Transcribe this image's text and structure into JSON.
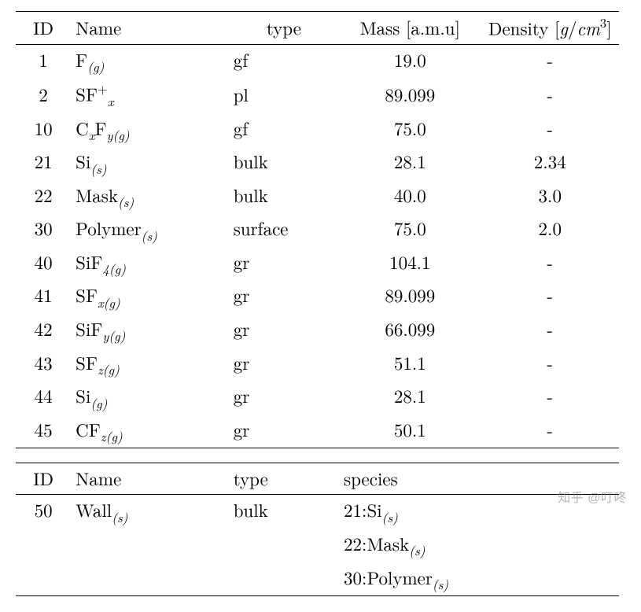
{
  "background_color": "#ffffff",
  "border_color": "#000000",
  "font_size_pt": 17,
  "table1": {
    "columns": [
      {
        "label": "ID",
        "align": "center"
      },
      {
        "label": "Name",
        "align": "left"
      },
      {
        "label": "type",
        "align": "left"
      },
      {
        "label_html": "Mass [a.m.u]",
        "align": "center"
      },
      {
        "label_html": "Density [<span class='it'>g</span>/<span class='it'>cm</span><span class='sup'>3</span>]",
        "align": "center"
      }
    ],
    "rows": [
      {
        "id": "1",
        "name_html": "F<span class='sub'>(g)</span>",
        "type": "gf",
        "mass": "19.0",
        "density": "-"
      },
      {
        "id": "2",
        "name_html": "SF<span class='sup'>+</span><span class='sub'>x</span>",
        "type": "pl",
        "mass": "89.099",
        "density": "-"
      },
      {
        "id": "10",
        "name_html": "C<span class='sub'>x</span>F<span class='sub'>y(g)</span>",
        "type": "gf",
        "mass": "75.0",
        "density": "-"
      },
      {
        "id": "21",
        "name_html": "Si<span class='sub'>(s)</span>",
        "type": "bulk",
        "mass": "28.1",
        "density": "2.34"
      },
      {
        "id": "22",
        "name_html": "Mask<span class='sub'>(s)</span>",
        "type": "bulk",
        "mass": "40.0",
        "density": "3.0"
      },
      {
        "id": "30",
        "name_html": "Polymer<span class='sub'>(s)</span>",
        "type": "surface",
        "mass": "75.0",
        "density": "2.0"
      },
      {
        "id": "40",
        "name_html": "SiF<span class='sub'>4(g)</span>",
        "type": "gr",
        "mass": "104.1",
        "density": "-"
      },
      {
        "id": "41",
        "name_html": "SF<span class='sub'>x(g)</span>",
        "type": "gr",
        "mass": "89.099",
        "density": "-"
      },
      {
        "id": "42",
        "name_html": "SiF<span class='sub'>y(g)</span>",
        "type": "gr",
        "mass": "66.099",
        "density": "-"
      },
      {
        "id": "43",
        "name_html": "SF<span class='sub'>z(g)</span>",
        "type": "gr",
        "mass": "51.1",
        "density": "-"
      },
      {
        "id": "44",
        "name_html": "Si<span class='sub'>(g)</span>",
        "type": "gr",
        "mass": "28.1",
        "density": "-"
      },
      {
        "id": "45",
        "name_html": "CF<span class='sub'>z(g)</span>",
        "type": "gr",
        "mass": "50.1",
        "density": "-"
      }
    ]
  },
  "table2": {
    "columns": [
      {
        "label": "ID",
        "align": "center"
      },
      {
        "label": "Name",
        "align": "left"
      },
      {
        "label": "type",
        "align": "left"
      },
      {
        "label": "species",
        "align": "left"
      }
    ],
    "rows": [
      {
        "id": "50",
        "name_html": "Wall<span class='sub'>(s)</span>",
        "type": "bulk",
        "species": [
          "21:Si<span class='sub'>(s)</span>",
          "22:Mask<span class='sub'>(s)</span>",
          "30:Polymer<span class='sub'>(s)</span>"
        ]
      }
    ]
  },
  "watermark": "知乎 @叮咚"
}
